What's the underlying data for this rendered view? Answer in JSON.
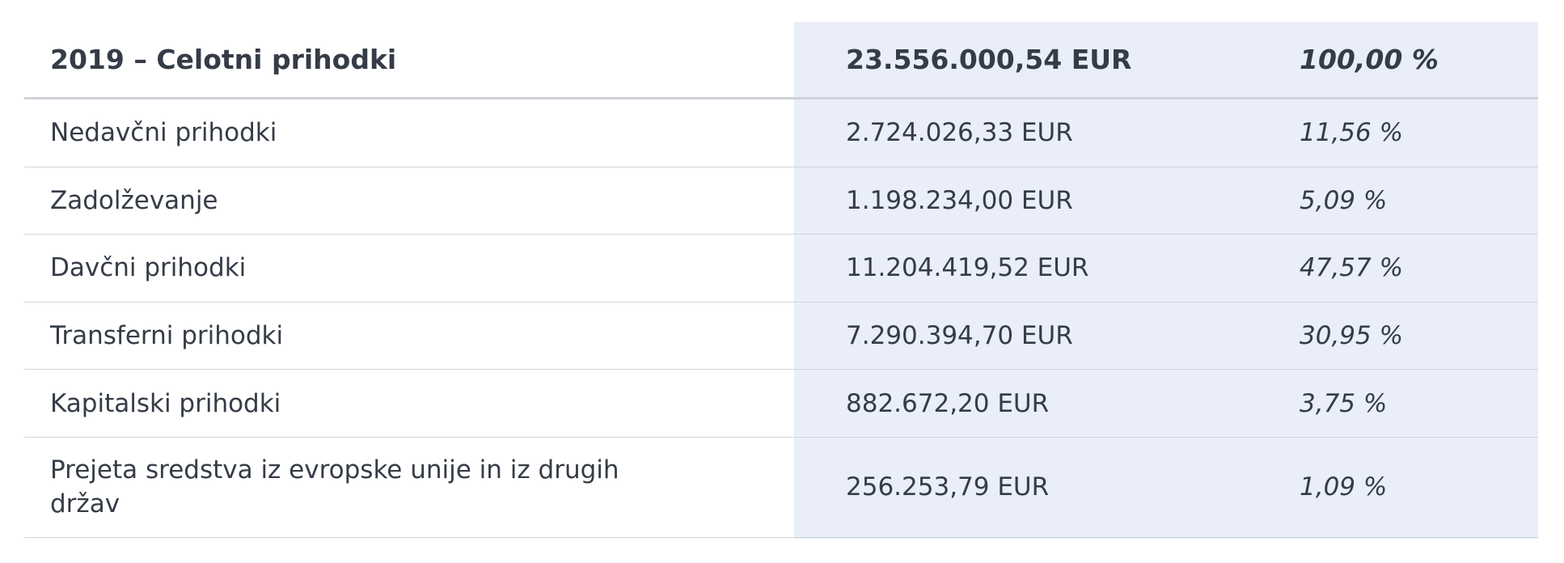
{
  "table": {
    "header": {
      "label": "2019 – Celotni prihodki",
      "amount": "23.556.000,54 EUR",
      "percent": "100,00 %"
    },
    "rows": [
      {
        "label": "Nedavčni prihodki",
        "amount": "2.724.026,33 EUR",
        "percent": "11,56 %"
      },
      {
        "label": "Zadolževanje",
        "amount": "1.198.234,00 EUR",
        "percent": "5,09 %"
      },
      {
        "label": "Davčni prihodki",
        "amount": "11.204.419,52 EUR",
        "percent": "47,57 %"
      },
      {
        "label": "Transferni prihodki",
        "amount": "7.290.394,70 EUR",
        "percent": "30,95 %"
      },
      {
        "label": "Kapitalski prihodki",
        "amount": "882.672,20 EUR",
        "percent": "3,75 %"
      },
      {
        "label": "Prejeta sredstva iz evropske unije in iz drugih držav",
        "amount": "256.253,79 EUR",
        "percent": "1,09 %"
      }
    ]
  },
  "colors": {
    "text": "#353c47",
    "highlight_column": "#e9eef9",
    "divider": "#d1d4da"
  }
}
